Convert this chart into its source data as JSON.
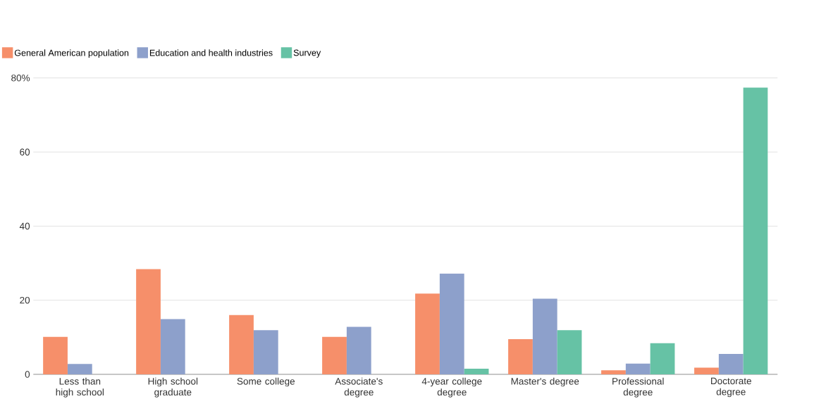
{
  "chart_data": {
    "type": "bar",
    "categories": [
      "Less than high school",
      "High school graduate",
      "Some college",
      "Associate's degree",
      "4-year college degree",
      "Master's degree",
      "Professional degree",
      "Doctorate degree"
    ],
    "series": [
      {
        "name": "General American population",
        "color": "#f68f6a",
        "values": [
          10.1,
          28.4,
          16.0,
          10.1,
          21.8,
          9.5,
          1.1,
          1.8
        ]
      },
      {
        "name": "Education and health industries",
        "color": "#8da0cb",
        "values": [
          2.8,
          14.9,
          11.9,
          12.8,
          27.2,
          20.4,
          2.9,
          5.5
        ]
      },
      {
        "name": "Survey",
        "color": "#66c2a5",
        "values": [
          null,
          null,
          null,
          null,
          1.5,
          11.9,
          8.4,
          77.4
        ]
      }
    ],
    "ylim": [
      0,
      80
    ],
    "yticks": [
      0,
      20,
      40,
      60,
      {
        "value": 80,
        "label": "80%"
      }
    ],
    "grid": "y",
    "legend": "top left"
  }
}
